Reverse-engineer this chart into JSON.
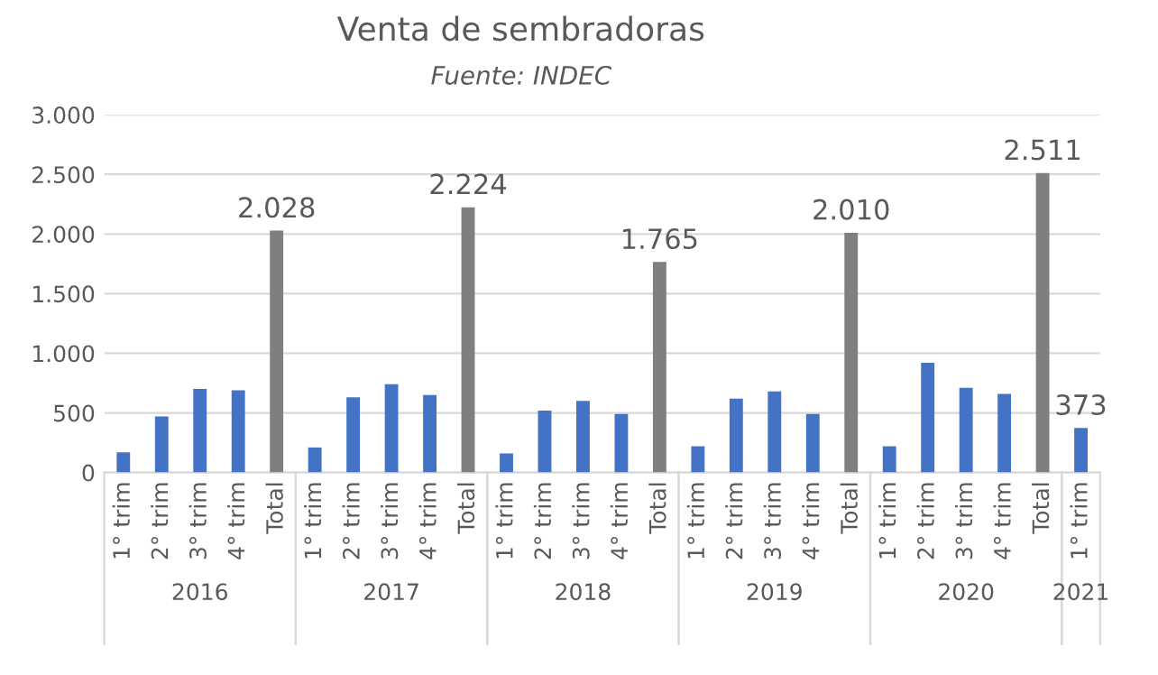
{
  "chart_data": {
    "type": "bar",
    "title": "Venta de sembradoras",
    "subtitle": "Fuente: INDEC",
    "categories": [
      "1° trim",
      "2° trim",
      "3° trim",
      "4° trim",
      "Total",
      "1° trim",
      "2° trim",
      "3° trim",
      "4° trim",
      "Total",
      "1° trim",
      "2° trim",
      "3° trim",
      "4° trim",
      "Total",
      "1° trim",
      "2° trim",
      "3° trim",
      "4° trim",
      "Total",
      "1° trim",
      "2° trim",
      "3° trim",
      "4° trim",
      "Total",
      "1° trim"
    ],
    "values": [
      170,
      470,
      700,
      690,
      2028,
      210,
      630,
      740,
      650,
      2224,
      160,
      520,
      600,
      490,
      1765,
      220,
      620,
      680,
      490,
      2010,
      220,
      920,
      710,
      660,
      2511,
      373
    ],
    "colors": [
      "#4472c4",
      "#4472c4",
      "#4472c4",
      "#4472c4",
      "#7f7f7f",
      "#4472c4",
      "#4472c4",
      "#4472c4",
      "#4472c4",
      "#7f7f7f",
      "#4472c4",
      "#4472c4",
      "#4472c4",
      "#4472c4",
      "#7f7f7f",
      "#4472c4",
      "#4472c4",
      "#4472c4",
      "#4472c4",
      "#7f7f7f",
      "#4472c4",
      "#4472c4",
      "#4472c4",
      "#4472c4",
      "#7f7f7f",
      "#4472c4"
    ],
    "value_labels": [
      null,
      null,
      null,
      null,
      "2.028",
      null,
      null,
      null,
      null,
      "2.224",
      null,
      null,
      null,
      null,
      "1.765",
      null,
      null,
      null,
      null,
      "2.010",
      null,
      null,
      null,
      null,
      "2.511",
      "373"
    ],
    "annotations": [
      "2016",
      "2017",
      "2018",
      "2019",
      "2020",
      "2021"
    ],
    "ylim": [
      0,
      3000
    ],
    "yticks": [
      {
        "value": 0,
        "label": "0"
      },
      {
        "value": 500,
        "label": "500"
      },
      {
        "value": 1000,
        "label": "1.000"
      },
      {
        "value": 1500,
        "label": "1.500"
      },
      {
        "value": 2000,
        "label": "2.000"
      },
      {
        "value": 2500,
        "label": "2.500"
      },
      {
        "value": 3000,
        "label": "3.000"
      }
    ],
    "grid": "y",
    "legend": false
  }
}
